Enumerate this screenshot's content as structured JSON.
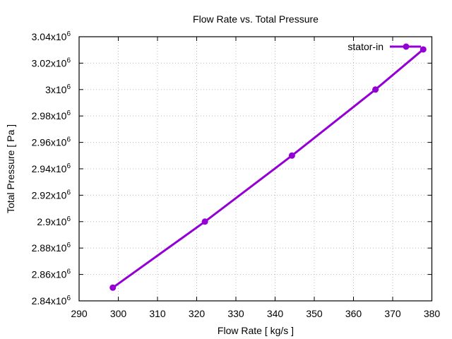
{
  "chart_data": {
    "type": "line",
    "title": "Flow Rate vs. Total Pressure",
    "xlabel": "Flow Rate [ kg/s ]",
    "ylabel": "Total Pressure [ Pa ]",
    "xlim": [
      290,
      380
    ],
    "ylim": [
      2840000,
      3040000
    ],
    "grid": true,
    "legend_position": "top-right",
    "x_ticks": [
      290,
      300,
      310,
      320,
      330,
      340,
      350,
      360,
      370,
      380
    ],
    "x_tick_labels": [
      "290",
      "300",
      "310",
      "320",
      "330",
      "340",
      "350",
      "360",
      "370",
      "380"
    ],
    "y_ticks": [
      2840000,
      2860000,
      2880000,
      2900000,
      2920000,
      2940000,
      2960000,
      2980000,
      3000000,
      3020000,
      3040000
    ],
    "y_tick_labels": [
      "2.84x10",
      "2.86x10",
      "2.88x10",
      "2.9x10",
      "2.92x10",
      "2.94x10",
      "2.96x10",
      "2.98x10",
      "3x10",
      "3.02x10",
      "3.04x10"
    ],
    "y_tick_exponent": "6",
    "series": [
      {
        "name": "stator-in",
        "color": "#9400d3",
        "x": [
          298.6,
          322.1,
          344.3,
          365.6,
          377.8
        ],
        "y": [
          2850000,
          2900000,
          2950000,
          3000000,
          3030400
        ]
      }
    ]
  }
}
